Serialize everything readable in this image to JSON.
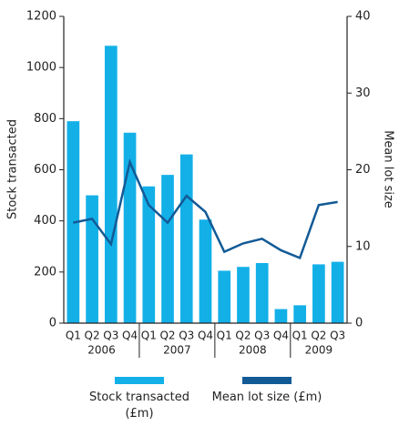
{
  "chart_data": {
    "type": "bar-line",
    "categories": [
      "Q1",
      "Q2",
      "Q3",
      "Q4",
      "Q1",
      "Q2",
      "Q3",
      "Q4",
      "Q1",
      "Q2",
      "Q3",
      "Q4",
      "Q1",
      "Q2",
      "Q3"
    ],
    "years": [
      "2006",
      "2007",
      "2008",
      "2009"
    ],
    "y_label": "Stock transacted",
    "y2_label": "Mean lot size",
    "series": [
      {
        "name": "Stock transacted (£m)",
        "type": "bar",
        "color": "#13b0e8",
        "values": [
          790,
          500,
          1085,
          745,
          535,
          580,
          660,
          405,
          205,
          220,
          235,
          55,
          70,
          230,
          240
        ]
      },
      {
        "name": "Mean lot size (£m)",
        "type": "line",
        "axis": "y2",
        "color": "#125a96",
        "values": [
          13.1,
          13.6,
          10.3,
          21.0,
          15.4,
          13.1,
          16.6,
          14.5,
          9.3,
          10.4,
          11.0,
          9.5,
          8.5,
          15.4,
          15.8
        ]
      }
    ],
    "ylim": [
      0,
      1200
    ],
    "yticks": [
      0,
      200,
      400,
      600,
      800,
      1000,
      1200
    ],
    "y2lim": [
      0,
      40
    ],
    "y2ticks": [
      0,
      10,
      20,
      30,
      40
    ]
  }
}
